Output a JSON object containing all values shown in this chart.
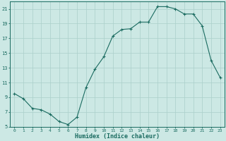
{
  "x": [
    0,
    1,
    2,
    3,
    4,
    5,
    6,
    7,
    8,
    9,
    10,
    11,
    12,
    13,
    14,
    15,
    16,
    17,
    18,
    19,
    20,
    21,
    22,
    23
  ],
  "y": [
    9.5,
    8.8,
    7.5,
    7.3,
    6.7,
    5.7,
    5.3,
    6.3,
    10.3,
    12.8,
    14.5,
    17.3,
    18.2,
    18.3,
    19.2,
    19.2,
    21.3,
    21.3,
    21.0,
    20.3,
    20.3,
    18.7,
    14.0,
    11.7
  ],
  "bg_color": "#cce8e4",
  "grid_color": "#aacfca",
  "line_color": "#1a6b60",
  "marker_color": "#1a6b60",
  "xlabel": "Humidex (Indice chaleur)",
  "ylim": [
    5,
    22
  ],
  "xlim": [
    -0.5,
    23.5
  ],
  "yticks": [
    5,
    7,
    9,
    11,
    13,
    15,
    17,
    19,
    21
  ],
  "xticks": [
    0,
    1,
    2,
    3,
    4,
    5,
    6,
    7,
    8,
    9,
    10,
    11,
    12,
    13,
    14,
    15,
    16,
    17,
    18,
    19,
    20,
    21,
    22,
    23
  ],
  "axis_color": "#1a6b60",
  "tick_color": "#1a6b60",
  "label_color": "#1a6b60"
}
